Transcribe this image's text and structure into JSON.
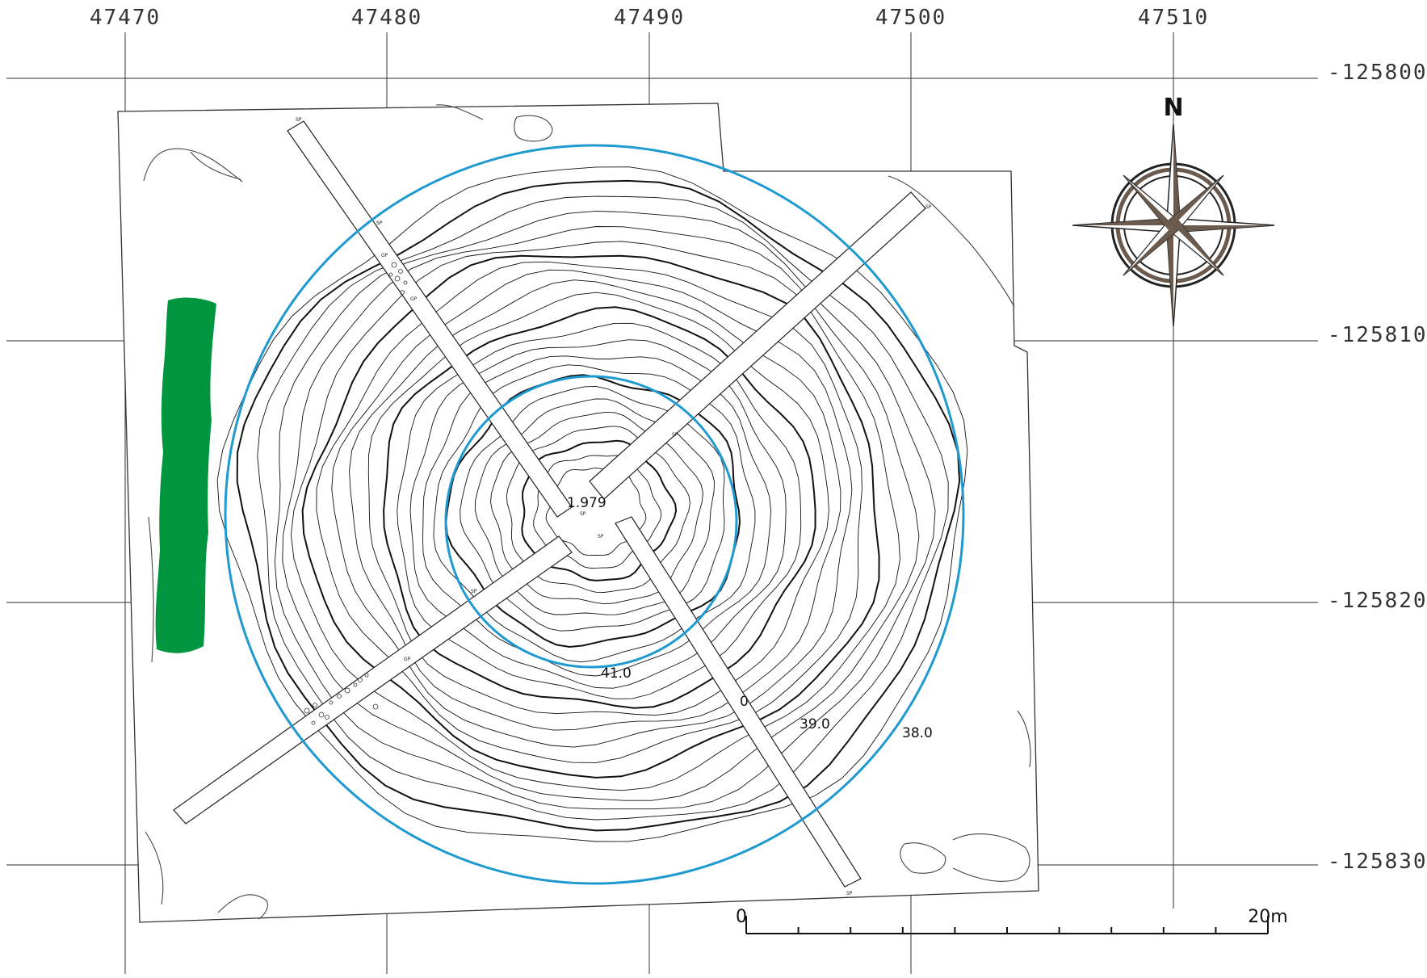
{
  "grid": {
    "x_labels": [
      "47470",
      "47480",
      "47490",
      "47500",
      "47510"
    ],
    "y_labels": [
      "-125800",
      "-125810",
      "-125820",
      "-125830"
    ]
  },
  "contour_labels": [
    "1.979",
    "41.0",
    "0",
    "39.0",
    "38.0"
  ],
  "trench_marks": [
    "SP",
    "SP",
    "SP",
    "SP",
    "SP",
    "GP",
    "GP",
    "GP",
    "SP",
    "SP",
    "SP",
    "SP"
  ],
  "north_arrow": {
    "label": "N"
  },
  "scale_bar": {
    "start_label": "0",
    "end_label": "20m",
    "divisions": 10
  },
  "colors": {
    "circle": "#1e9ad0",
    "vegetation": "#009640",
    "grid": "#555555",
    "contour": "#111111",
    "compass_fill": "#6b5a4e"
  }
}
